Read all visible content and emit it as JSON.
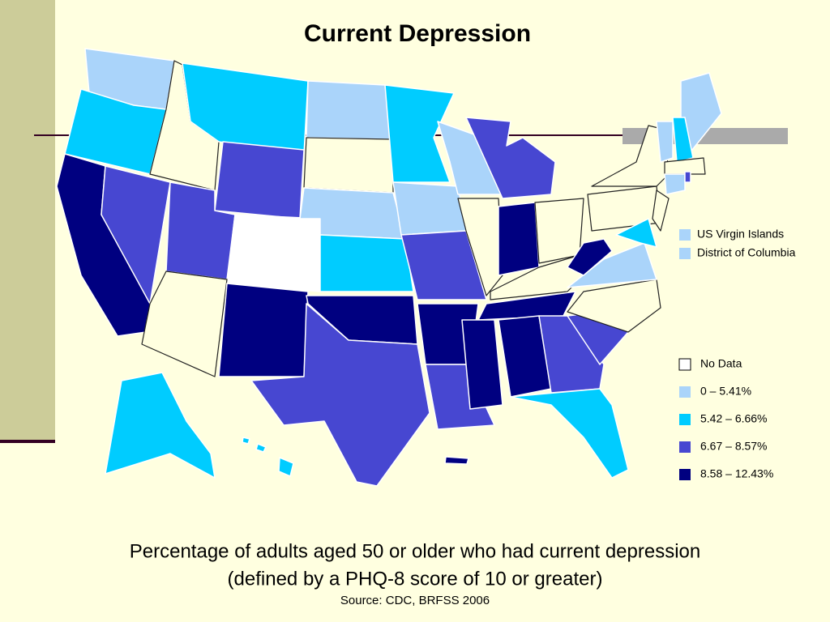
{
  "title": "Current Depression",
  "territories": [
    {
      "label": "US Virgin Islands",
      "color": "#aad4fa"
    },
    {
      "label": "District of Columbia",
      "color": "#aad4fa"
    }
  ],
  "legend": [
    {
      "label": "No Data",
      "color": "#ffffff"
    },
    {
      "label": "0 – 5.41%",
      "color": "#aad4fa"
    },
    {
      "label": "5.42 – 6.66%",
      "color": "#00ccff"
    },
    {
      "label": "6.67 – 8.57%",
      "color": "#4747d1"
    },
    {
      "label": "8.58 – 12.43%",
      "color": "#000080"
    }
  ],
  "caption": "Percentage of adults aged 50 or older who had current depression",
  "caption_line2": "(defined by a PHQ-8 score of 10 or greater)",
  "source": "Source:  CDC, BRFSS 2006"
}
